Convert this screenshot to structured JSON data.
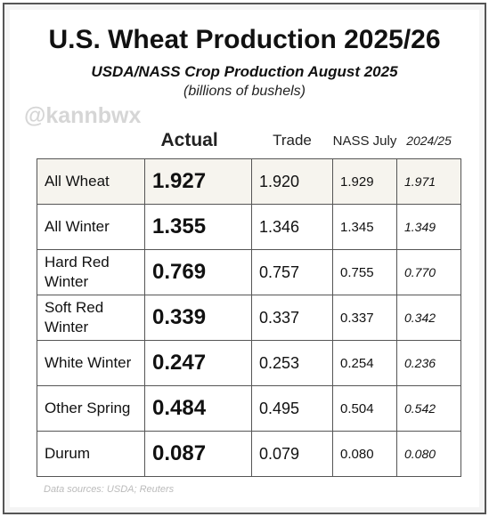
{
  "header": {
    "title": "U.S. Wheat Production 2025/26",
    "subtitle": "USDA/NASS Crop Production August 2025",
    "units": "(billions of bushels)",
    "watermark": "@kannbwx"
  },
  "table": {
    "columns": [
      "Actual",
      "Trade",
      "NASS July",
      "2024/25"
    ],
    "rows": [
      [
        "All Wheat",
        "1.927",
        "1.920",
        "1.929",
        "1.971"
      ],
      [
        "All Winter",
        "1.355",
        "1.346",
        "1.345",
        "1.349"
      ],
      [
        "Hard Red Winter",
        "0.769",
        "0.757",
        "0.755",
        "0.770"
      ],
      [
        "Soft Red Winter",
        "0.339",
        "0.337",
        "0.337",
        "0.342"
      ],
      [
        "White Winter",
        "0.247",
        "0.253",
        "0.254",
        "0.236"
      ],
      [
        "Other Spring",
        "0.484",
        "0.495",
        "0.504",
        "0.542"
      ],
      [
        "Durum",
        "0.087",
        "0.079",
        "0.080",
        "0.080"
      ]
    ]
  },
  "footer": {
    "source": "Data sources: USDA; Reuters"
  }
}
